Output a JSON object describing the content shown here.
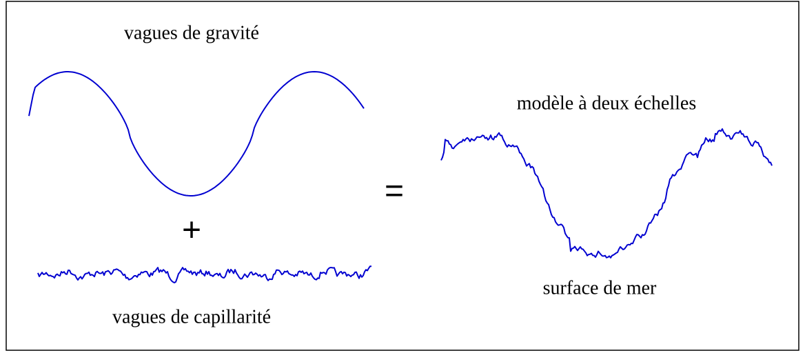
{
  "gravity_label": "vagues de gravité",
  "plus": "+",
  "capillary_label": "vagues de capillarité",
  "equals": "=",
  "model_label": "modèle à deux échelles",
  "surface_label": "surface de mer"
}
